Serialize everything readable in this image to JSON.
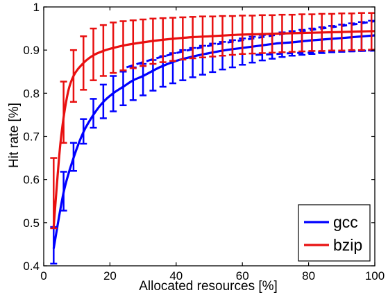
{
  "chart_data": {
    "type": "line",
    "title": "",
    "xlabel": "Allocated resources [%]",
    "ylabel": "Hit rate [%]",
    "xlim": [
      0,
      100
    ],
    "ylim": [
      0.4,
      1.0
    ],
    "xticks": [
      0,
      20,
      40,
      60,
      80,
      100
    ],
    "yticks": [
      0.4,
      0.5,
      0.6,
      0.7,
      0.8,
      0.9,
      1.0
    ],
    "xtick_labels": [
      "0",
      "20",
      "40",
      "60",
      "80",
      "100"
    ],
    "ytick_labels": [
      "0.4",
      "0.5",
      "0.6",
      "0.7",
      "0.8",
      "0.9",
      "1"
    ],
    "grid": false,
    "legend_position": "bottom-right",
    "series": [
      {
        "name": "gcc",
        "color": "#0000ff",
        "mean": {
          "x": [
            3,
            6,
            9,
            12,
            15,
            18,
            21,
            24,
            27,
            30,
            35,
            40,
            45,
            50,
            55,
            60,
            65,
            70,
            75,
            80,
            85,
            90,
            95,
            100
          ],
          "y": [
            0.44,
            0.57,
            0.65,
            0.71,
            0.75,
            0.78,
            0.8,
            0.815,
            0.83,
            0.84,
            0.86,
            0.875,
            0.885,
            0.893,
            0.9,
            0.905,
            0.91,
            0.915,
            0.918,
            0.922,
            0.925,
            0.928,
            0.931,
            0.934
          ]
        },
        "upper_dashed": {
          "x": [
            25,
            30,
            35,
            40,
            45,
            50,
            55,
            60,
            65,
            70,
            75,
            80,
            85,
            90,
            95,
            100
          ],
          "y": [
            0.86,
            0.872,
            0.883,
            0.893,
            0.902,
            0.91,
            0.917,
            0.923,
            0.929,
            0.935,
            0.941,
            0.946,
            0.951,
            0.956,
            0.961,
            0.967
          ]
        },
        "lower_dashed": {
          "x": [
            64,
            70,
            75,
            80,
            85,
            90,
            95,
            100
          ],
          "y": [
            0.889,
            0.891,
            0.893,
            0.894,
            0.896,
            0.897,
            0.898,
            0.899
          ]
        },
        "errorbars": {
          "x": [
            3,
            6,
            9,
            12,
            15,
            18,
            21,
            24,
            27,
            30,
            33,
            36,
            39,
            42,
            45,
            48,
            51,
            54,
            57,
            60,
            63,
            66,
            69,
            72,
            75,
            78,
            81,
            84,
            87,
            90,
            93,
            96,
            99
          ],
          "low": [
            0.405,
            0.528,
            0.62,
            0.683,
            0.72,
            0.742,
            0.758,
            0.772,
            0.784,
            0.795,
            0.806,
            0.815,
            0.823,
            0.83,
            0.837,
            0.843,
            0.849,
            0.855,
            0.86,
            0.866,
            0.871,
            0.876,
            0.88,
            0.884,
            0.887,
            0.889,
            0.891,
            0.893,
            0.895,
            0.896,
            0.897,
            0.898,
            0.899
          ],
          "high": [
            0.49,
            0.618,
            0.685,
            0.74,
            0.787,
            0.82,
            0.84,
            0.85,
            0.86,
            0.868,
            0.877,
            0.886,
            0.893,
            0.9,
            0.905,
            0.91,
            0.915,
            0.919,
            0.923,
            0.927,
            0.931,
            0.935,
            0.938,
            0.941,
            0.944,
            0.947,
            0.95,
            0.953,
            0.956,
            0.959,
            0.962,
            0.965,
            0.968
          ]
        }
      },
      {
        "name": "bzip",
        "color": "#e81010",
        "mean": {
          "x": [
            3,
            5,
            7,
            9,
            12,
            15,
            18,
            21,
            25,
            30,
            35,
            40,
            45,
            50,
            55,
            60,
            65,
            70,
            75,
            80,
            85,
            90,
            95,
            100
          ],
          "y": [
            0.49,
            0.68,
            0.79,
            0.84,
            0.87,
            0.888,
            0.898,
            0.905,
            0.912,
            0.918,
            0.923,
            0.927,
            0.93,
            0.932,
            0.934,
            0.936,
            0.937,
            0.938,
            0.939,
            0.94,
            0.941,
            0.942,
            0.943,
            0.944
          ]
        },
        "errorbars": {
          "x": [
            3,
            6,
            9,
            12,
            15,
            18,
            21,
            24,
            27,
            30,
            33,
            36,
            39,
            42,
            45,
            48,
            51,
            54,
            57,
            60,
            63,
            66,
            69,
            72,
            75,
            78,
            81,
            84,
            87,
            90,
            93,
            96,
            99
          ],
          "low": [
            0.487,
            0.685,
            0.78,
            0.808,
            0.83,
            0.84,
            0.847,
            0.853,
            0.858,
            0.863,
            0.868,
            0.872,
            0.875,
            0.878,
            0.881,
            0.883,
            0.885,
            0.887,
            0.889,
            0.891,
            0.892,
            0.893,
            0.894,
            0.895,
            0.896,
            0.897,
            0.898,
            0.898,
            0.899,
            0.899,
            0.9,
            0.9,
            0.901
          ],
          "high": [
            0.65,
            0.827,
            0.9,
            0.932,
            0.95,
            0.958,
            0.964,
            0.967,
            0.969,
            0.971,
            0.973,
            0.974,
            0.975,
            0.976,
            0.977,
            0.978,
            0.978,
            0.979,
            0.979,
            0.98,
            0.98,
            0.981,
            0.981,
            0.982,
            0.982,
            0.983,
            0.983,
            0.984,
            0.984,
            0.985,
            0.985,
            0.986,
            0.986
          ]
        }
      }
    ]
  }
}
